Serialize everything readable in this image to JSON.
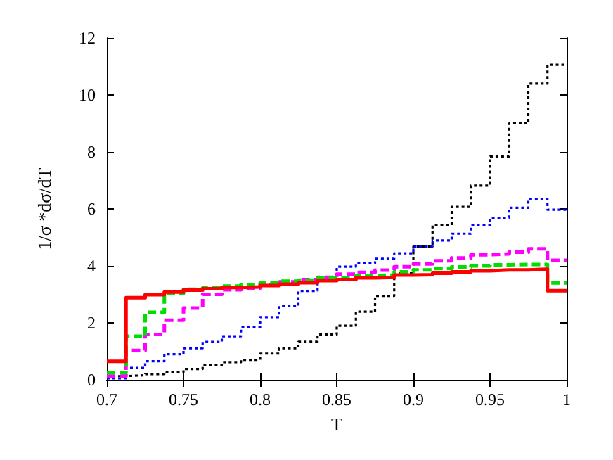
{
  "chart_data": {
    "type": "histogram",
    "xlabel": "T",
    "ylabel": "1/σ *dσ/dT",
    "bins": [
      0.7,
      0.7125,
      0.725,
      0.7375,
      0.75,
      0.7625,
      0.775,
      0.7875,
      0.8,
      0.8125,
      0.825,
      0.8375,
      0.85,
      0.8625,
      0.875,
      0.8875,
      0.9,
      0.9125,
      0.925,
      0.9375,
      0.95,
      0.9625,
      0.975,
      0.9875,
      1.0
    ],
    "series": [
      {
        "color": "#000000",
        "line_style": "dotted",
        "values": [
          0.13,
          0.16,
          0.2,
          0.27,
          0.38,
          0.52,
          0.62,
          0.7,
          0.92,
          1.11,
          1.34,
          1.59,
          1.9,
          2.39,
          2.95,
          3.74,
          4.68,
          5.43,
          6.07,
          6.82,
          7.84,
          9.0,
          10.4,
          11.06
        ]
      },
      {
        "color": "#0000ff",
        "line_style": "dotted",
        "values": [
          0.05,
          0.42,
          0.65,
          0.9,
          1.11,
          1.33,
          1.53,
          1.84,
          2.2,
          2.59,
          3.12,
          3.55,
          3.97,
          4.09,
          4.25,
          4.44,
          4.68,
          4.89,
          5.13,
          5.42,
          5.69,
          6.04,
          6.35,
          5.97
        ]
      },
      {
        "color": "#ff00ff",
        "line_style": "dashed",
        "values": [
          0.13,
          1.03,
          1.59,
          2.09,
          2.52,
          3.0,
          3.16,
          3.22,
          3.34,
          3.44,
          3.52,
          3.6,
          3.71,
          3.77,
          3.85,
          3.97,
          4.07,
          4.18,
          4.28,
          4.39,
          4.42,
          4.48,
          4.6,
          4.2
        ]
      },
      {
        "color": "#00dd00",
        "line_style": "dashed",
        "values": [
          0.25,
          1.53,
          2.37,
          3.04,
          3.18,
          3.22,
          3.29,
          3.34,
          3.4,
          3.46,
          3.5,
          3.57,
          3.6,
          3.66,
          3.68,
          3.79,
          3.86,
          3.91,
          3.96,
          4.0,
          4.04,
          4.05,
          4.05,
          3.4
        ]
      },
      {
        "color": "#ff0000",
        "line_style": "solid",
        "values": [
          0.65,
          2.88,
          2.99,
          3.08,
          3.15,
          3.2,
          3.24,
          3.26,
          3.31,
          3.36,
          3.41,
          3.48,
          3.52,
          3.58,
          3.6,
          3.68,
          3.69,
          3.74,
          3.79,
          3.83,
          3.86,
          3.86,
          3.88,
          3.13
        ]
      }
    ],
    "xlim": [
      0.7,
      1
    ],
    "xticks": [
      0.7,
      0.75,
      0.8,
      0.85,
      0.9,
      0.95,
      1
    ],
    "ylim": [
      0,
      12
    ],
    "yticks": [
      0,
      2,
      4,
      6,
      8,
      10,
      12
    ],
    "grid": false
  }
}
